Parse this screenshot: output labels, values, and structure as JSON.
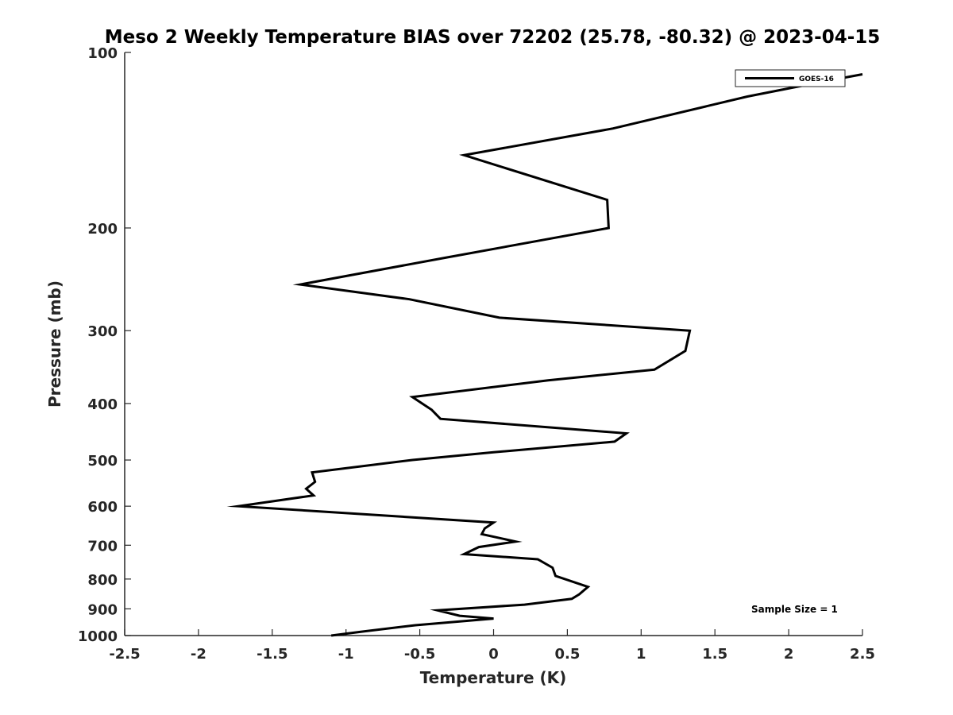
{
  "chart_data": {
    "type": "line",
    "title": "Meso 2 Weekly Temperature BIAS over 72202 (25.78, -80.32) @ 2023-04-15",
    "xlabel": "Temperature (K)",
    "ylabel": "Pressure (mb)",
    "xlim": [
      -2.5,
      2.5
    ],
    "ylim": [
      1000,
      100
    ],
    "y_scale": "log",
    "y_reversed": true,
    "x_ticks": [
      -2.5,
      -2,
      -1.5,
      -1,
      -0.5,
      0,
      0.5,
      1,
      1.5,
      2,
      2.5
    ],
    "x_tick_labels": [
      "-2.5",
      "-2",
      "-1.5",
      "-1",
      "-0.5",
      "0",
      "0.5",
      "1",
      "1.5",
      "2",
      "2.5"
    ],
    "y_ticks": [
      100,
      200,
      300,
      400,
      500,
      600,
      700,
      800,
      900,
      1000
    ],
    "y_tick_labels": [
      "100",
      "200",
      "300",
      "400",
      "500",
      "600",
      "700",
      "800",
      "900",
      "1000"
    ],
    "grid": false,
    "legend_position": "top-right",
    "annotation": "Sample Size = 1",
    "series": [
      {
        "name": "GOES-16",
        "color": "#000000",
        "points": [
          {
            "x": 2.5,
            "y": 109
          },
          {
            "x": 2.25,
            "y": 112
          },
          {
            "x": 1.72,
            "y": 119
          },
          {
            "x": 0.81,
            "y": 135
          },
          {
            "x": -0.2,
            "y": 150
          },
          {
            "x": 0.77,
            "y": 179
          },
          {
            "x": 0.78,
            "y": 200
          },
          {
            "x": -0.33,
            "y": 225
          },
          {
            "x": -1.31,
            "y": 250
          },
          {
            "x": -0.57,
            "y": 265
          },
          {
            "x": 0.04,
            "y": 285
          },
          {
            "x": 1.33,
            "y": 300
          },
          {
            "x": 1.3,
            "y": 325
          },
          {
            "x": 1.09,
            "y": 350
          },
          {
            "x": 0.37,
            "y": 365
          },
          {
            "x": -0.55,
            "y": 390
          },
          {
            "x": -0.42,
            "y": 410
          },
          {
            "x": -0.36,
            "y": 425
          },
          {
            "x": 0.9,
            "y": 450
          },
          {
            "x": 0.82,
            "y": 465
          },
          {
            "x": 0.0,
            "y": 485
          },
          {
            "x": -0.55,
            "y": 500
          },
          {
            "x": -1.23,
            "y": 525
          },
          {
            "x": -1.21,
            "y": 545
          },
          {
            "x": -1.27,
            "y": 560
          },
          {
            "x": -1.22,
            "y": 575
          },
          {
            "x": -1.73,
            "y": 600
          },
          {
            "x": 0.0,
            "y": 640
          },
          {
            "x": -0.06,
            "y": 655
          },
          {
            "x": -0.08,
            "y": 670
          },
          {
            "x": 0.15,
            "y": 690
          },
          {
            "x": -0.1,
            "y": 705
          },
          {
            "x": -0.2,
            "y": 725
          },
          {
            "x": 0.3,
            "y": 740
          },
          {
            "x": 0.4,
            "y": 765
          },
          {
            "x": 0.42,
            "y": 790
          },
          {
            "x": 0.64,
            "y": 825
          },
          {
            "x": 0.58,
            "y": 850
          },
          {
            "x": 0.53,
            "y": 865
          },
          {
            "x": 0.21,
            "y": 885
          },
          {
            "x": -0.38,
            "y": 905
          },
          {
            "x": -0.23,
            "y": 925
          },
          {
            "x": 0.0,
            "y": 935
          },
          {
            "x": -0.53,
            "y": 960
          },
          {
            "x": -0.9,
            "y": 985
          },
          {
            "x": -1.1,
            "y": 1000
          }
        ]
      }
    ]
  }
}
